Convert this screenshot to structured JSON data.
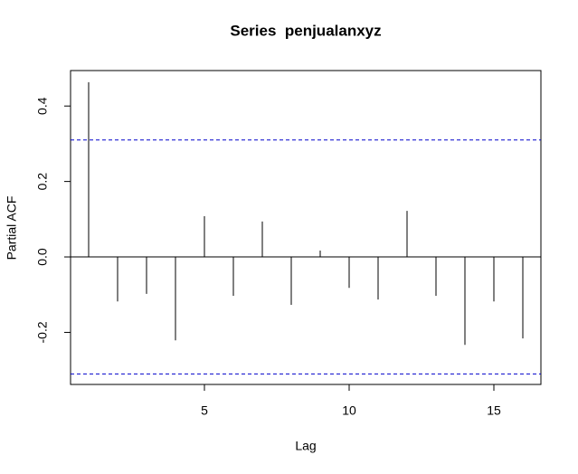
{
  "chart_data": {
    "type": "pacf",
    "title": "Series  penjualanxyz",
    "x_label": "Lag",
    "y_label": "Partial ACF",
    "x": [
      1,
      2,
      3,
      4,
      5,
      6,
      7,
      8,
      9,
      10,
      11,
      12,
      13,
      14,
      15,
      16
    ],
    "values": [
      0.463,
      -0.118,
      -0.098,
      -0.221,
      0.108,
      -0.103,
      0.094,
      -0.127,
      0.017,
      -0.082,
      -0.113,
      0.122,
      -0.103,
      -0.233,
      -0.118,
      -0.216
    ],
    "color": "#000000",
    "confidence_bounds": [
      0.31,
      -0.31
    ],
    "confidence_color": "#0000cc",
    "xlim": [
      0.375,
      16.625
    ],
    "xticks": [
      5,
      10,
      15
    ],
    "ylim": [
      -0.338,
      0.494
    ],
    "yticks": [
      -0.2,
      {
        "value": 0.0,
        "label": "0.0"
      },
      0.2,
      0.4
    ]
  }
}
